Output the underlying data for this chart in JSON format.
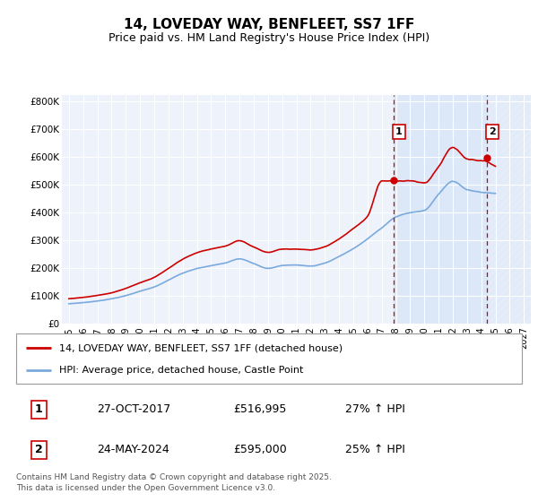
{
  "title": "14, LOVEDAY WAY, BENFLEET, SS7 1FF",
  "subtitle": "Price paid vs. HM Land Registry's House Price Index (HPI)",
  "legend_line1": "14, LOVEDAY WAY, BENFLEET, SS7 1FF (detached house)",
  "legend_line2": "HPI: Average price, detached house, Castle Point",
  "transaction1_label": "1",
  "transaction1_date": "27-OCT-2017",
  "transaction1_price": "£516,995",
  "transaction1_hpi": "27% ↑ HPI",
  "transaction2_label": "2",
  "transaction2_date": "24-MAY-2024",
  "transaction2_price": "£595,000",
  "transaction2_hpi": "25% ↑ HPI",
  "footer": "Contains HM Land Registry data © Crown copyright and database right 2025.\nThis data is licensed under the Open Government Licence v3.0.",
  "line_color_red": "#cc0000",
  "line_color_blue": "#7aaadd",
  "shade_color": "#dce8f8",
  "hatch_color": "#cccccc",
  "grid_color": "#dddddd",
  "vline_color": "#cc0000",
  "marker1_x": 2017.82,
  "marker2_x": 2024.38,
  "marker1_y": 516995,
  "marker2_y": 595000,
  "ylim_min": 0,
  "ylim_max": 820000,
  "xlim_min": 1994.5,
  "xlim_max": 2027.5,
  "yticks": [
    0,
    100000,
    200000,
    300000,
    400000,
    500000,
    600000,
    700000,
    800000
  ],
  "ytick_labels": [
    "£0",
    "£100K",
    "£200K",
    "£300K",
    "£400K",
    "£500K",
    "£600K",
    "£700K",
    "£800K"
  ],
  "xticks": [
    1995,
    1996,
    1997,
    1998,
    1999,
    2000,
    2001,
    2002,
    2003,
    2004,
    2005,
    2006,
    2007,
    2008,
    2009,
    2010,
    2011,
    2012,
    2013,
    2014,
    2015,
    2016,
    2017,
    2018,
    2019,
    2020,
    2021,
    2022,
    2023,
    2024,
    2025,
    2026,
    2027
  ]
}
